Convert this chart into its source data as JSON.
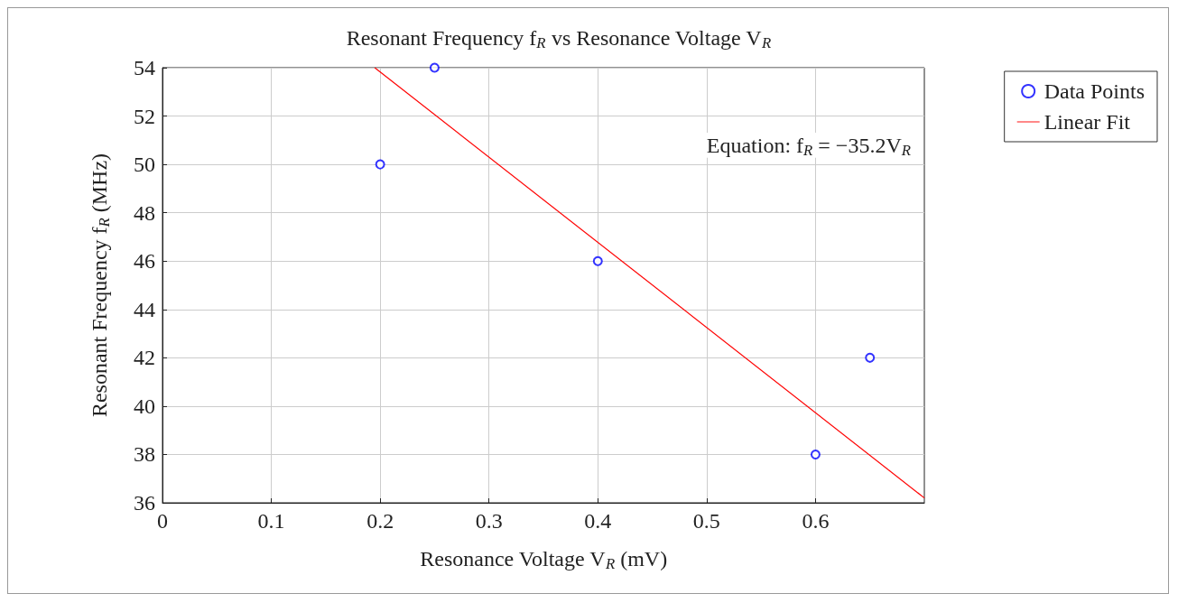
{
  "chart_data": {
    "type": "scatter",
    "title": "Resonant Frequency f$_{R}$ vs Resonance Voltage V$_{R}$",
    "xlabel": "Resonance Voltage V$_{R}$ (mV)",
    "ylabel": "Resonant Frequency f$_{R}$ (MHz)",
    "series": [
      {
        "name": "Data Points",
        "color": "#0000ff",
        "marker": "circle",
        "x": [
          0.2,
          0.25,
          0.4,
          0.6,
          0.65
        ],
        "values": [
          50,
          54,
          46,
          38,
          42
        ]
      },
      {
        "name": "Linear Fit",
        "type": "line",
        "color": "#ff0000",
        "marker": "none",
        "x": [
          0.195,
          0.7
        ],
        "values": [
          54,
          36.2
        ]
      }
    ],
    "annotations": [
      "Equation: f$_{R}$ = −35.2V$_{R}$"
    ],
    "xlim": [
      0,
      0.7
    ],
    "xticks": [
      0,
      0.1,
      0.2,
      0.3,
      0.4,
      0.5,
      0.6
    ],
    "ylim": [
      36,
      54
    ],
    "yticks": [
      36,
      38,
      40,
      42,
      44,
      46,
      48,
      50,
      52,
      54
    ],
    "grid": true,
    "legend": "right"
  }
}
